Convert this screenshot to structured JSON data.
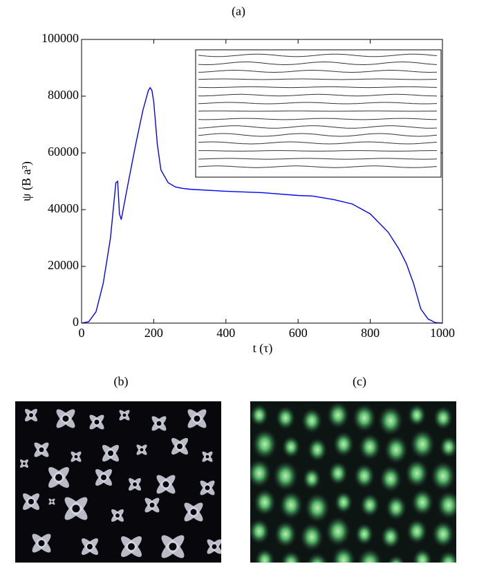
{
  "chart_data": {
    "type": "line",
    "title": "(a)",
    "x_label": "t (τ)",
    "y_label": "ψ (B a³)",
    "x": [
      0,
      20,
      40,
      60,
      80,
      95,
      100,
      105,
      110,
      130,
      150,
      170,
      185,
      190,
      195,
      200,
      210,
      220,
      240,
      260,
      280,
      300,
      400,
      500,
      600,
      640,
      700,
      750,
      800,
      850,
      880,
      900,
      920,
      940,
      960,
      980,
      1000
    ],
    "values": [
      0,
      500,
      4000,
      14000,
      30000,
      49500,
      50000,
      38500,
      36500,
      50000,
      63000,
      75000,
      82000,
      83000,
      82000,
      78000,
      63000,
      54000,
      49500,
      48000,
      47500,
      47200,
      46500,
      46000,
      45000,
      44800,
      43500,
      42000,
      38500,
      32000,
      26000,
      21000,
      14000,
      5000,
      1500,
      200,
      0
    ],
    "color": "#0000ff",
    "xlim": [
      0,
      1000
    ],
    "xticks": [
      0,
      200,
      400,
      600,
      800,
      1000
    ],
    "ylim": [
      0,
      100000
    ],
    "yticks": [
      0,
      20000,
      40000,
      60000,
      80000,
      100000
    ]
  },
  "panels": [
    {
      "label": "(b)"
    },
    {
      "label": "(c)"
    }
  ]
}
